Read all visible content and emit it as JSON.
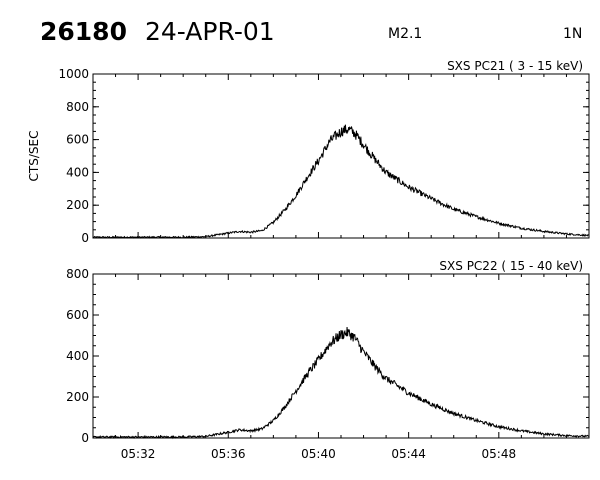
{
  "header": {
    "event_id": "26180",
    "date": "24-APR-01",
    "flare_class": "M2.1",
    "location": "1N"
  },
  "chart_data": [
    {
      "type": "line",
      "title": "SXS PC21  (  3 - 15 keV)",
      "ylabel": "CTS/SEC",
      "xlabel": "",
      "x_unit": "minutes (UT)",
      "xlim": [
        "05:30",
        "05:52"
      ],
      "ylim": [
        0,
        1000
      ],
      "yticks": [
        0,
        200,
        400,
        600,
        800,
        1000
      ],
      "xticks": [
        "05:32",
        "05:36",
        "05:40",
        "05:44",
        "05:48"
      ],
      "series": [
        {
          "x": [
            "05:30",
            "05:32",
            "05:34",
            "05:35",
            "05:36",
            "05:36.5",
            "05:37",
            "05:37.5",
            "05:38",
            "05:38.5",
            "05:39",
            "05:39.5",
            "05:40",
            "05:40.5",
            "05:41",
            "05:41.3",
            "05:41.6",
            "05:42",
            "05:42.5",
            "05:43",
            "05:44",
            "05:45",
            "05:46",
            "05:47",
            "05:48",
            "05:49",
            "05:50",
            "05:51",
            "05:52"
          ],
          "values": [
            5,
            5,
            5,
            8,
            30,
            40,
            35,
            45,
            95,
            170,
            260,
            370,
            470,
            590,
            650,
            665,
            640,
            570,
            480,
            400,
            310,
            240,
            175,
            130,
            90,
            60,
            40,
            25,
            15
          ]
        }
      ]
    },
    {
      "type": "line",
      "title": "SXS PC22  ( 15 - 40 keV)",
      "ylabel": "",
      "xlabel": "",
      "x_unit": "minutes (UT)",
      "xlim": [
        "05:30",
        "05:52"
      ],
      "ylim": [
        0,
        800
      ],
      "yticks": [
        0,
        200,
        400,
        600,
        800
      ],
      "xticks": [
        "05:32",
        "05:36",
        "05:40",
        "05:44",
        "05:48"
      ],
      "series": [
        {
          "x": [
            "05:30",
            "05:32",
            "05:34",
            "05:35",
            "05:36",
            "05:36.5",
            "05:37",
            "05:37.5",
            "05:38",
            "05:38.5",
            "05:39",
            "05:39.5",
            "05:40",
            "05:40.5",
            "05:41",
            "05:41.3",
            "05:41.6",
            "05:42",
            "05:42.5",
            "05:43",
            "05:44",
            "05:45",
            "05:46",
            "05:47",
            "05:48",
            "05:49",
            "05:50",
            "05:51",
            "05:52"
          ],
          "values": [
            5,
            5,
            5,
            8,
            28,
            40,
            35,
            45,
            85,
            150,
            230,
            310,
            380,
            460,
            505,
            515,
            490,
            420,
            350,
            290,
            220,
            165,
            120,
            85,
            55,
            35,
            20,
            12,
            8
          ]
        }
      ]
    }
  ]
}
